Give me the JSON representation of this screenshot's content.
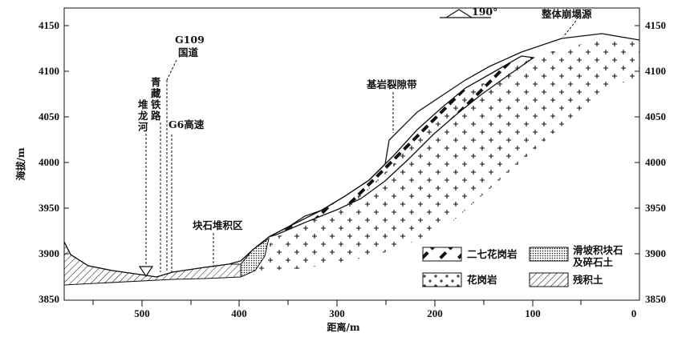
{
  "axes": {
    "x_title": "距离/m",
    "y_title": "海拔/m",
    "x_ticks": [
      "500",
      "400",
      "300",
      "200",
      "100",
      "0"
    ],
    "y_ticks": [
      "4150",
      "4100",
      "4050",
      "4000",
      "3950",
      "3900",
      "3850"
    ]
  },
  "labels": {
    "direction": "190°",
    "collapse_source": "整体崩塌源",
    "fracture_zone": "基岩裂隙带",
    "g109_line1": "G109",
    "g109_line2": "国道",
    "railway_c1": "青",
    "railway_c2": "藏",
    "railway_c3": "铁",
    "railway_c4": "路",
    "river_c1": "堆",
    "river_c2": "龙",
    "river_c3": "河",
    "g6": "G6高速",
    "boulder_zone": "块石堆积区"
  },
  "legend": {
    "granite_27": "二七花岗岩",
    "landslide_line1": "滑坡积块石",
    "landslide_line2": "及碎石土",
    "granite": "花岗岩",
    "residual": "残积土"
  },
  "colors": {
    "ink": "#111111",
    "background": "#ffffff"
  }
}
